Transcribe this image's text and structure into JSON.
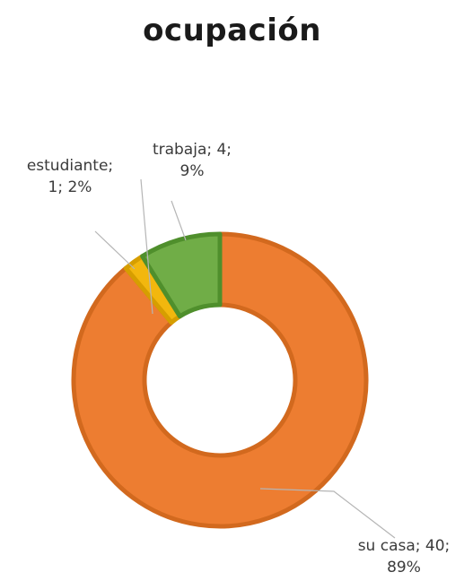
{
  "chart_data": {
    "type": "pie",
    "style": "donut",
    "title": "ocupación",
    "legend": "none",
    "slices": [
      {
        "label": "su casa",
        "value": 40,
        "percent": "89%",
        "color": "#ED7D31",
        "border": "#D2691E",
        "label_line1": "su casa; 40;",
        "label_line2": "89%"
      },
      {
        "label": "estudiante",
        "value": 1,
        "percent": "2%",
        "color": "#F2B70E",
        "border": "#D69E00",
        "label_line1": "estudiante;",
        "label_line2": "1; 2%"
      },
      {
        "label": "trabaja",
        "value": 4,
        "percent": "9%",
        "color": "#70AD47",
        "border": "#4F8F2C",
        "label_line1": "trabaja; 4;",
        "label_line2": "9%"
      }
    ]
  }
}
